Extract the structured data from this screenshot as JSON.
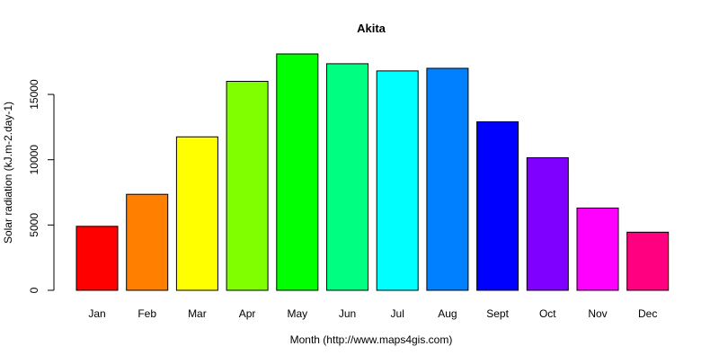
{
  "chart_data": {
    "type": "bar",
    "title": "Akita",
    "xlabel": "Month (http://www.maps4gis.com)",
    "ylabel": "Solar radiation (kJ.m-2.day-1)",
    "categories": [
      "Jan",
      "Feb",
      "Mar",
      "Apr",
      "May",
      "Jun",
      "Jul",
      "Aug",
      "Sept",
      "Oct",
      "Nov",
      "Dec"
    ],
    "values": [
      4900,
      7350,
      11750,
      16000,
      18100,
      17350,
      16800,
      17000,
      12900,
      10150,
      6300,
      4450
    ],
    "colors": [
      "#ff0000",
      "#ff8000",
      "#ffff00",
      "#80ff00",
      "#00ff00",
      "#00ff80",
      "#00ffff",
      "#0080ff",
      "#0000ff",
      "#8000ff",
      "#ff00ff",
      "#ff0080"
    ],
    "yticks": [
      0,
      5000,
      10000,
      15000
    ],
    "ylim": [
      0,
      18500
    ],
    "grid": false,
    "legend": "none"
  }
}
